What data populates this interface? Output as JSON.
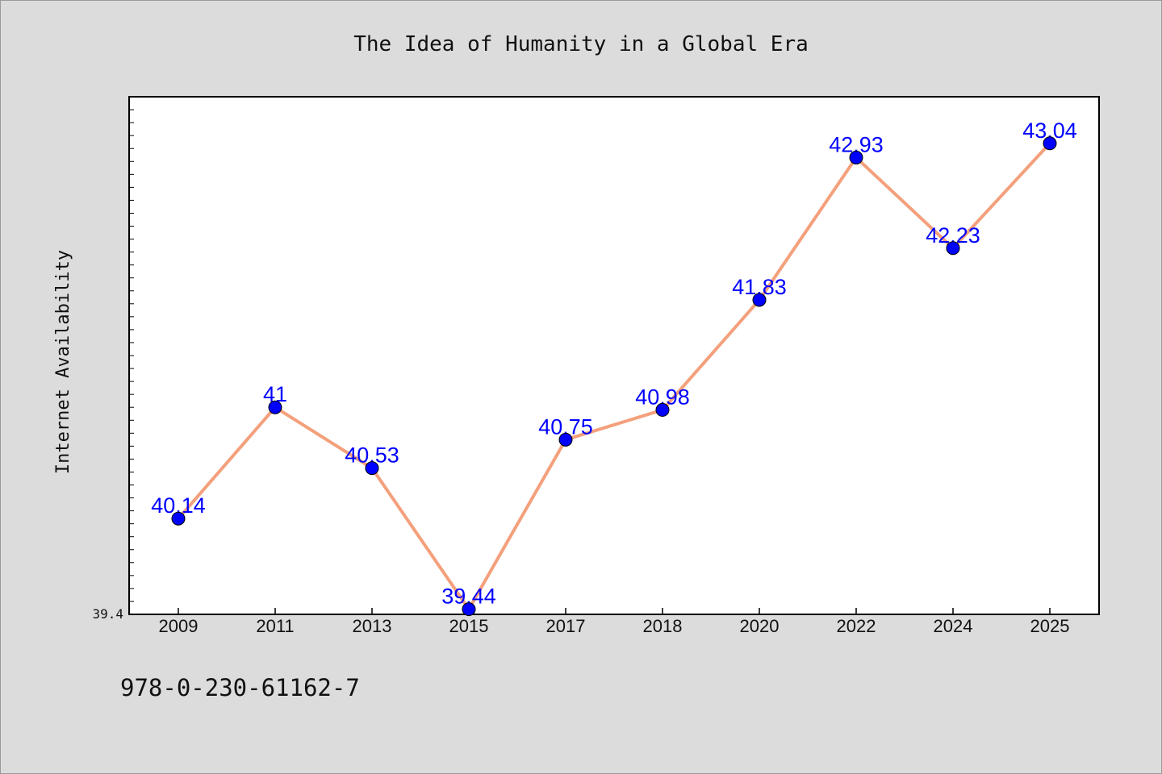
{
  "footer": {
    "isbn": "978-0-230-61162-7"
  },
  "chart_data": {
    "type": "line",
    "title": "The Idea of Humanity in a Global Era",
    "xlabel": "",
    "ylabel": "Internet Availability",
    "categories": [
      "2009",
      "2011",
      "2013",
      "2015",
      "2017",
      "2018",
      "2020",
      "2022",
      "2024",
      "2025"
    ],
    "series": [
      {
        "values": [
          40.14,
          41,
          40.53,
          39.44,
          40.75,
          40.98,
          41.83,
          42.93,
          42.23,
          43.04
        ],
        "labels": [
          "40.14",
          "41",
          "40.53",
          "39.44",
          "40.75",
          "40.98",
          "41.83",
          "42.93",
          "42.23",
          "43.04"
        ],
        "line_color": "#f4a07c",
        "marker_color": "#0000ff"
      }
    ],
    "ylim": [
      39.4,
      43.4
    ],
    "ytick_labels": [
      "39.4"
    ],
    "grid": false,
    "legend": "none",
    "colors": {
      "background": "#dcdcdc",
      "plot_background": "#ffffff",
      "axis": "#000000",
      "data_label": "#0000ff"
    }
  }
}
